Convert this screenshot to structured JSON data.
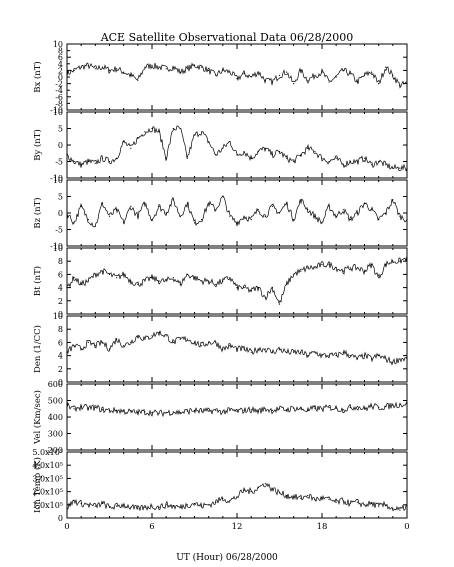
{
  "chart_data": {
    "type": "line",
    "title": "ACE Satellite Observational Data   06/28/2000",
    "xlabel": "UT (Hour)   06/28/2000",
    "x_ticks": [
      "0",
      "6",
      "12",
      "18",
      "0"
    ],
    "xlim": [
      0,
      24
    ],
    "panels": [
      {
        "ylabel": "Bx (nT)",
        "ylim": [
          -10,
          10
        ],
        "yticks": [
          "-10",
          "-6",
          "-2",
          "2",
          "6",
          "10"
        ],
        "yticks_minor": [
          "-8",
          "-4",
          "0",
          "4",
          "8"
        ],
        "x": [
          0,
          0.5,
          1,
          1.5,
          2,
          2.5,
          3,
          3.5,
          4,
          4.5,
          5,
          5.5,
          6,
          6.5,
          7,
          7.5,
          8,
          8.5,
          9,
          9.5,
          10,
          10.5,
          11,
          11.5,
          12,
          12.5,
          13,
          13.5,
          14,
          14.5,
          15,
          15.5,
          16,
          16.5,
          17,
          17.5,
          18,
          18.5,
          19,
          19.5,
          20,
          20.5,
          21,
          21.5,
          22,
          22.5,
          23,
          23.5,
          24
        ],
        "values": [
          1,
          2,
          3,
          3.5,
          2.5,
          3,
          2,
          2.5,
          1.5,
          0.5,
          -1,
          3,
          3.5,
          3,
          2.5,
          3,
          1.5,
          2.5,
          3.5,
          3,
          2,
          0.5,
          2,
          1.5,
          -0.5,
          1,
          0,
          1.5,
          -1,
          -1.5,
          0.5,
          1.5,
          -2,
          2,
          -1,
          0.5,
          1.5,
          -1.5,
          0,
          2,
          1,
          -1.5,
          0.5,
          1.5,
          -2,
          3,
          0.5,
          -2.5,
          -2
        ]
      },
      {
        "ylabel": "By (nT)",
        "ylim": [
          -10,
          10
        ],
        "yticks": [
          "-10",
          "-5",
          "0",
          "5",
          "10"
        ],
        "x": [
          0,
          0.5,
          1,
          1.5,
          2,
          2.5,
          3,
          3.5,
          4,
          4.5,
          5,
          5.5,
          6,
          6.5,
          7,
          7.5,
          8,
          8.5,
          9,
          9.5,
          10,
          10.5,
          11,
          11.5,
          12,
          12.5,
          13,
          13.5,
          14,
          14.5,
          15,
          15.5,
          16,
          16.5,
          17,
          17.5,
          18,
          18.5,
          19,
          19.5,
          20,
          20.5,
          21,
          21.5,
          22,
          22.5,
          23,
          23.5,
          24
        ],
        "values": [
          -3,
          -5,
          -6,
          -5,
          -5.5,
          -4,
          -5,
          -4,
          1,
          -1,
          2,
          4,
          5,
          4,
          -4,
          5,
          5,
          -4,
          3,
          4,
          1,
          -3,
          -1,
          1,
          -3,
          -2,
          -4,
          -2,
          -1,
          -3,
          -2,
          -4,
          -5,
          -3,
          -1,
          -2,
          -4,
          -5,
          -4,
          -6,
          -5,
          -5,
          -4,
          -6,
          -5,
          -6,
          -7,
          -7,
          -7
        ]
      },
      {
        "ylabel": "Bz (nT)",
        "ylim": [
          -10,
          10
        ],
        "yticks": [
          "-10",
          "-5",
          "0",
          "5",
          "10"
        ],
        "x": [
          0,
          0.5,
          1,
          1.5,
          2,
          2.5,
          3,
          3.5,
          4,
          4.5,
          5,
          5.5,
          6,
          6.5,
          7,
          7.5,
          8,
          8.5,
          9,
          9.5,
          10,
          10.5,
          11,
          11.5,
          12,
          12.5,
          13,
          13.5,
          14,
          14.5,
          15,
          15.5,
          16,
          16.5,
          17,
          17.5,
          18,
          18.5,
          19,
          19.5,
          20,
          20.5,
          21,
          21.5,
          22,
          22.5,
          23,
          23.5,
          24
        ],
        "values": [
          0,
          -3,
          2,
          -2,
          -4,
          3,
          -1,
          1,
          -3,
          2,
          -1,
          3,
          -2,
          2,
          0,
          4,
          -1,
          3,
          -3,
          -2,
          3,
          1,
          5,
          -1,
          -3,
          -1,
          -2,
          1,
          -1,
          2,
          0,
          3,
          -2,
          4,
          1,
          -1,
          -3,
          2,
          -1,
          1,
          -2,
          0,
          3,
          1,
          -2,
          0,
          4,
          -1,
          -2
        ]
      },
      {
        "ylabel": "Bt (nT)",
        "ylim": [
          0,
          10
        ],
        "yticks": [
          "0",
          "2",
          "4",
          "6",
          "8",
          "10"
        ],
        "x": [
          0,
          0.5,
          1,
          1.5,
          2,
          2.5,
          3,
          3.5,
          4,
          4.5,
          5,
          5.5,
          6,
          6.5,
          7,
          7.5,
          8,
          8.5,
          9,
          9.5,
          10,
          10.5,
          11,
          11.5,
          12,
          12.5,
          13,
          13.5,
          14,
          14.5,
          15,
          15.5,
          16,
          16.5,
          17,
          17.5,
          18,
          18.5,
          19,
          19.5,
          20,
          20.5,
          21,
          21.5,
          22,
          22.5,
          23,
          23.5,
          24
        ],
        "values": [
          4,
          5.5,
          4.5,
          5,
          6,
          6.5,
          6,
          5.5,
          6,
          5,
          4.5,
          5,
          5.5,
          5,
          5,
          5.5,
          4.5,
          6,
          5.5,
          5,
          5,
          4.5,
          5,
          5.5,
          4,
          4,
          3.5,
          4,
          2.5,
          4,
          1.5,
          4.5,
          6,
          6.5,
          7,
          7,
          7.5,
          7.5,
          7,
          6.5,
          7,
          7,
          6.5,
          7.5,
          5.5,
          7.5,
          8,
          8,
          8.5
        ]
      },
      {
        "ylabel": "Den (1/CC)",
        "ylim": [
          0,
          10
        ],
        "yticks": [
          "0",
          "2",
          "4",
          "6",
          "8",
          "10"
        ],
        "x": [
          0,
          0.5,
          1,
          1.5,
          2,
          2.5,
          3,
          3.5,
          4,
          4.5,
          5,
          5.5,
          6,
          6.5,
          7,
          7.5,
          8,
          8.5,
          9,
          9.5,
          10,
          10.5,
          11,
          11.5,
          12,
          12.5,
          13,
          13.5,
          14,
          14.5,
          15,
          15.5,
          16,
          16.5,
          17,
          17.5,
          18,
          18.5,
          19,
          19.5,
          20,
          20.5,
          21,
          21.5,
          22,
          22.5,
          23,
          23.5,
          24
        ],
        "values": [
          4.5,
          5.5,
          5,
          6,
          5.5,
          6,
          5,
          6.5,
          5.5,
          6,
          7,
          6.5,
          7,
          7.5,
          7,
          6,
          6.5,
          6.5,
          6,
          5.5,
          6,
          6,
          5,
          5.5,
          5,
          5,
          4.5,
          5,
          5,
          4.5,
          5,
          4.5,
          4.5,
          4.5,
          4,
          4.5,
          4,
          4,
          4,
          4.5,
          4,
          3.5,
          4,
          3.5,
          4,
          3.5,
          3,
          3.5,
          3.5
        ]
      },
      {
        "ylabel": "Vel (Km/sec)",
        "ylim": [
          200,
          650
        ],
        "yticks": [
          "200",
          "300",
          "400",
          "500",
          "600"
        ],
        "x": [
          0,
          0.5,
          1,
          1.5,
          2,
          2.5,
          3,
          3.5,
          4,
          4.5,
          5,
          5.5,
          6,
          6.5,
          7,
          7.5,
          8,
          8.5,
          9,
          9.5,
          10,
          10.5,
          11,
          11.5,
          12,
          12.5,
          13,
          13.5,
          14,
          14.5,
          15,
          15.5,
          16,
          16.5,
          17,
          17.5,
          18,
          18.5,
          19,
          19.5,
          20,
          20.5,
          21,
          21.5,
          22,
          22.5,
          23,
          23.5,
          24
        ],
        "values": [
          500,
          480,
          495,
          485,
          490,
          475,
          470,
          470,
          465,
          460,
          455,
          460,
          455,
          450,
          455,
          460,
          455,
          465,
          470,
          465,
          465,
          470,
          460,
          470,
          465,
          470,
          475,
          465,
          480,
          470,
          480,
          475,
          485,
          480,
          470,
          485,
          480,
          490,
          485,
          475,
          490,
          495,
          480,
          500,
          490,
          495,
          505,
          510,
          515
        ]
      },
      {
        "ylabel": "Ion Temp (K)",
        "ylim": [
          0,
          500000
        ],
        "yticks": [
          "0",
          "1.0x10⁵",
          "2.0x10⁵",
          "3.0x10⁵",
          "4.0x10⁵",
          "5.0x10⁵"
        ],
        "x": [
          0,
          0.5,
          1,
          1.5,
          2,
          2.5,
          3,
          3.5,
          4,
          4.5,
          5,
          5.5,
          6,
          6.5,
          7,
          7.5,
          8,
          8.5,
          9,
          9.5,
          10,
          10.5,
          11,
          11.5,
          12,
          12.5,
          13,
          13.5,
          14,
          14.5,
          15,
          15.5,
          16,
          16.5,
          17,
          17.5,
          18,
          18.5,
          19,
          19.5,
          20,
          20.5,
          21,
          21.5,
          22,
          22.5,
          23,
          23.5,
          24
        ],
        "values": [
          80000,
          130000,
          110000,
          100000,
          90000,
          110000,
          80000,
          90000,
          100000,
          80000,
          70000,
          80000,
          90000,
          80000,
          100000,
          90000,
          80000,
          100000,
          110000,
          90000,
          100000,
          120000,
          150000,
          130000,
          160000,
          210000,
          200000,
          230000,
          260000,
          220000,
          190000,
          170000,
          160000,
          150000,
          170000,
          140000,
          150000,
          140000,
          120000,
          130000,
          110000,
          120000,
          100000,
          110000,
          90000,
          100000,
          70000,
          60000,
          90000
        ]
      }
    ]
  }
}
